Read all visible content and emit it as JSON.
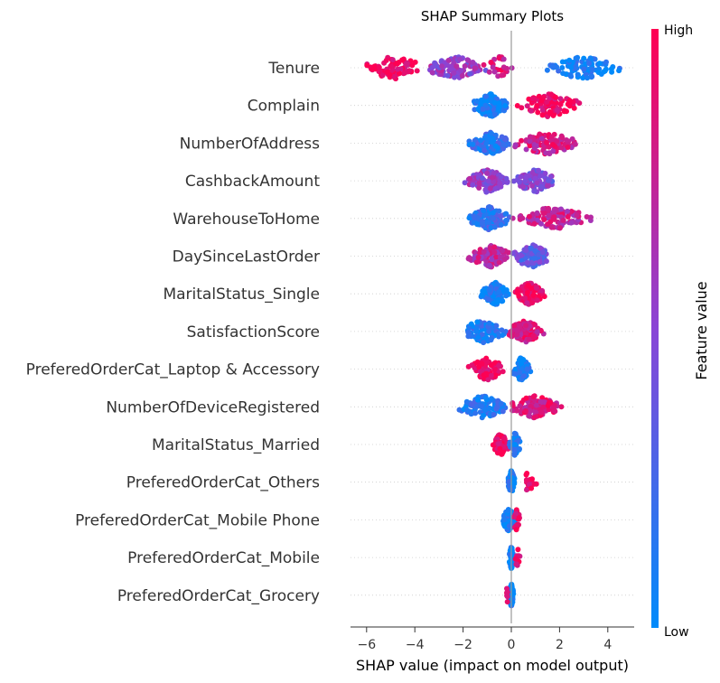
{
  "chart_data": {
    "type": "scatter",
    "title": "SHAP Summary Plots",
    "xlabel": "SHAP value (impact on model output)",
    "xlim": [
      -6.8,
      5.2
    ],
    "xticks": [
      -6,
      -4,
      -2,
      0,
      2,
      4
    ],
    "grid": false,
    "colorbar": {
      "label": "Feature value",
      "high": "High",
      "low": "Low",
      "color_low": "#008bfb",
      "color_mid": "#8a45d6",
      "color_high": "#ff0052"
    },
    "features": [
      {
        "name": "Tenure",
        "spread": [
          -6.3,
          4.6
        ],
        "clusters": [
          {
            "from": -6.3,
            "to": -3.5,
            "value": 0.95,
            "count": 70
          },
          {
            "from": -3.6,
            "to": -1.0,
            "value": 0.55,
            "count": 110
          },
          {
            "from": -1.2,
            "to": 0.3,
            "value": 0.85,
            "count": 25
          },
          {
            "from": 1.4,
            "to": 4.6,
            "value": 0.05,
            "count": 90
          }
        ]
      },
      {
        "name": "Complain",
        "spread": [
          -1.7,
          3.0
        ],
        "clusters": [
          {
            "from": -1.7,
            "to": -0.05,
            "value": 0.05,
            "count": 140
          },
          {
            "from": 0.1,
            "to": 3.0,
            "value": 0.95,
            "count": 90
          }
        ]
      },
      {
        "name": "NumberOfAddress",
        "spread": [
          -1.8,
          2.8
        ],
        "clusters": [
          {
            "from": -1.8,
            "to": 0.0,
            "value": 0.15,
            "count": 110
          },
          {
            "from": 0.0,
            "to": 2.8,
            "value": 0.8,
            "count": 90
          }
        ]
      },
      {
        "name": "CashbackAmount",
        "spread": [
          -2.0,
          2.0
        ],
        "clusters": [
          {
            "from": -2.0,
            "to": 0.0,
            "value": 0.55,
            "count": 110
          },
          {
            "from": 0.0,
            "to": 2.0,
            "value": 0.45,
            "count": 90
          }
        ]
      },
      {
        "name": "WarehouseToHome",
        "spread": [
          -1.8,
          3.4
        ],
        "clusters": [
          {
            "from": -1.8,
            "to": 0.0,
            "value": 0.2,
            "count": 110
          },
          {
            "from": 0.0,
            "to": 3.4,
            "value": 0.75,
            "count": 100
          }
        ]
      },
      {
        "name": "DaySinceLastOrder",
        "spread": [
          -1.8,
          1.7
        ],
        "clusters": [
          {
            "from": -1.8,
            "to": 0.0,
            "value": 0.7,
            "count": 100
          },
          {
            "from": 0.0,
            "to": 1.7,
            "value": 0.35,
            "count": 90
          }
        ]
      },
      {
        "name": "MaritalStatus_Single",
        "spread": [
          -1.3,
          1.4
        ],
        "clusters": [
          {
            "from": -1.3,
            "to": -0.05,
            "value": 0.05,
            "count": 120
          },
          {
            "from": 0.1,
            "to": 1.4,
            "value": 0.95,
            "count": 90
          }
        ]
      },
      {
        "name": "SatisfactionScore",
        "spread": [
          -2.3,
          1.4
        ],
        "clusters": [
          {
            "from": -2.3,
            "to": -0.1,
            "value": 0.1,
            "count": 90
          },
          {
            "from": -0.2,
            "to": 1.4,
            "value": 0.85,
            "count": 110
          }
        ]
      },
      {
        "name": "PreferedOrderCat_Laptop & Accessory",
        "spread": [
          -1.8,
          0.8
        ],
        "clusters": [
          {
            "from": -1.8,
            "to": -0.2,
            "value": 0.95,
            "count": 90
          },
          {
            "from": 0.0,
            "to": 0.8,
            "value": 0.05,
            "count": 90
          }
        ]
      },
      {
        "name": "NumberOfDeviceRegistered",
        "spread": [
          -2.2,
          2.1
        ],
        "clusters": [
          {
            "from": -2.2,
            "to": -0.1,
            "value": 0.1,
            "count": 90
          },
          {
            "from": -0.1,
            "to": 2.1,
            "value": 0.85,
            "count": 110
          }
        ]
      },
      {
        "name": "MaritalStatus_Married",
        "spread": [
          -0.8,
          0.4
        ],
        "clusters": [
          {
            "from": -0.8,
            "to": -0.05,
            "value": 0.95,
            "count": 60
          },
          {
            "from": -0.1,
            "to": 0.4,
            "value": 0.1,
            "count": 60
          }
        ]
      },
      {
        "name": "PreferedOrderCat_Others",
        "spread": [
          -0.15,
          1.1
        ],
        "clusters": [
          {
            "from": -0.15,
            "to": 0.15,
            "value": 0.05,
            "count": 80
          },
          {
            "from": 0.4,
            "to": 1.1,
            "value": 0.95,
            "count": 20
          }
        ]
      },
      {
        "name": "PreferedOrderCat_Mobile Phone",
        "spread": [
          -0.4,
          0.4
        ],
        "clusters": [
          {
            "from": -0.4,
            "to": 0.2,
            "value": 0.05,
            "count": 80
          },
          {
            "from": 0.05,
            "to": 0.4,
            "value": 0.95,
            "count": 20
          }
        ]
      },
      {
        "name": "PreferedOrderCat_Mobile",
        "spread": [
          -0.1,
          0.4
        ],
        "clusters": [
          {
            "from": -0.1,
            "to": 0.1,
            "value": 0.05,
            "count": 80
          },
          {
            "from": 0.15,
            "to": 0.4,
            "value": 0.95,
            "count": 12
          }
        ]
      },
      {
        "name": "PreferedOrderCat_Grocery",
        "spread": [
          -0.25,
          0.1
        ],
        "clusters": [
          {
            "from": -0.1,
            "to": 0.1,
            "value": 0.05,
            "count": 80
          },
          {
            "from": -0.25,
            "to": -0.1,
            "value": 0.95,
            "count": 6
          }
        ]
      }
    ]
  }
}
